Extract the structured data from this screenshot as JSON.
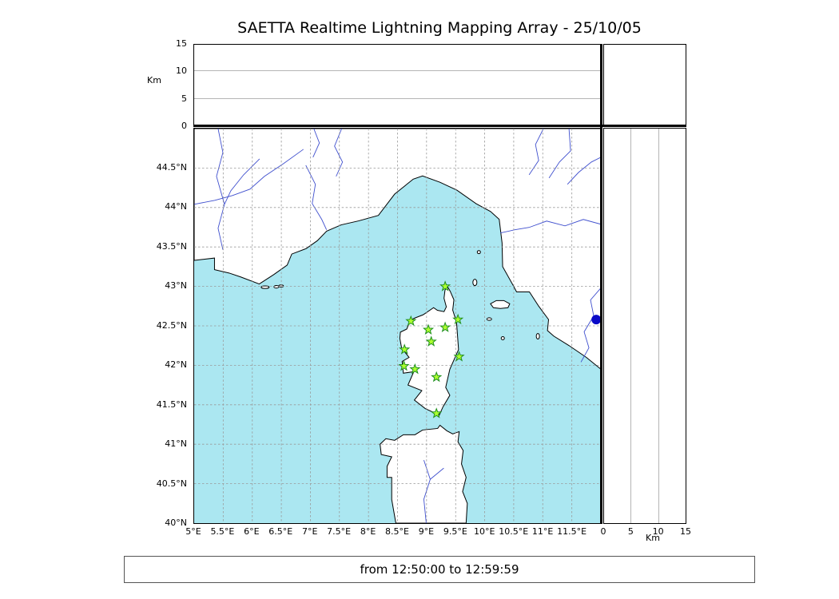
{
  "title": "SAETTA Realtime Lightning Mapping Array - 25/10/05",
  "footer": {
    "text": "from 12:50:00 to 12:59:59"
  },
  "top_panel": {
    "axis_label": "Km",
    "ticks": [
      {
        "label": "0",
        "value": 0
      },
      {
        "label": "5",
        "value": 5
      },
      {
        "label": "10",
        "value": 10
      },
      {
        "label": "15",
        "value": 15
      }
    ],
    "range_km": [
      0,
      15
    ]
  },
  "right_panel": {
    "axis_label": "Km",
    "ticks": [
      {
        "label": "0",
        "value": 0
      },
      {
        "label": "5",
        "value": 5
      },
      {
        "label": "10",
        "value": 10
      },
      {
        "label": "15",
        "value": 15
      }
    ],
    "range_km": [
      0,
      15
    ]
  },
  "map": {
    "lon_range": [
      5,
      12
    ],
    "lat_range": [
      40,
      45
    ],
    "lon_ticks": [
      {
        "label": "5°E",
        "value": 5
      },
      {
        "label": "5.5°E",
        "value": 5.5
      },
      {
        "label": "6°E",
        "value": 6
      },
      {
        "label": "6.5°E",
        "value": 6.5
      },
      {
        "label": "7°E",
        "value": 7
      },
      {
        "label": "7.5°E",
        "value": 7.5
      },
      {
        "label": "8°E",
        "value": 8
      },
      {
        "label": "8.5°E",
        "value": 8.5
      },
      {
        "label": "9°E",
        "value": 9
      },
      {
        "label": "9.5°E",
        "value": 9.5
      },
      {
        "label": "10°E",
        "value": 10
      },
      {
        "label": "10.5°E",
        "value": 10.5
      },
      {
        "label": "11°E",
        "value": 11
      },
      {
        "label": "11.5°E",
        "value": 11.5
      }
    ],
    "lat_ticks": [
      {
        "label": "44.5°N",
        "value": 44.5
      },
      {
        "label": "44°N",
        "value": 44
      },
      {
        "label": "43.5°N",
        "value": 43.5
      },
      {
        "label": "43°N",
        "value": 43
      },
      {
        "label": "42.5°N",
        "value": 42.5
      },
      {
        "label": "42°N",
        "value": 42
      },
      {
        "label": "41.5°N",
        "value": 41.5
      },
      {
        "label": "41°N",
        "value": 41
      },
      {
        "label": "40.5°N",
        "value": 40.5
      },
      {
        "label": "40°N",
        "value": 40
      }
    ],
    "colors": {
      "sea": "#abe7f1",
      "land": "#ffffff",
      "coast": "#000000",
      "river": "#3f4fce",
      "grid": "#999999",
      "station_fill": "#adff2f",
      "station_stroke": "#1f8f1f",
      "blue_dot": "#0a0ac8"
    },
    "stations": [
      {
        "lon": 9.32,
        "lat": 43.0
      },
      {
        "lon": 8.73,
        "lat": 42.56
      },
      {
        "lon": 9.03,
        "lat": 42.45
      },
      {
        "lon": 9.32,
        "lat": 42.48
      },
      {
        "lon": 9.54,
        "lat": 42.58
      },
      {
        "lon": 9.08,
        "lat": 42.3
      },
      {
        "lon": 8.62,
        "lat": 42.2
      },
      {
        "lon": 9.56,
        "lat": 42.11
      },
      {
        "lon": 8.61,
        "lat": 41.99
      },
      {
        "lon": 8.8,
        "lat": 41.95
      },
      {
        "lon": 9.17,
        "lat": 41.85
      },
      {
        "lon": 9.17,
        "lat": 41.39
      }
    ],
    "blue_dot": {
      "lon": 11.92,
      "lat": 42.58
    }
  }
}
